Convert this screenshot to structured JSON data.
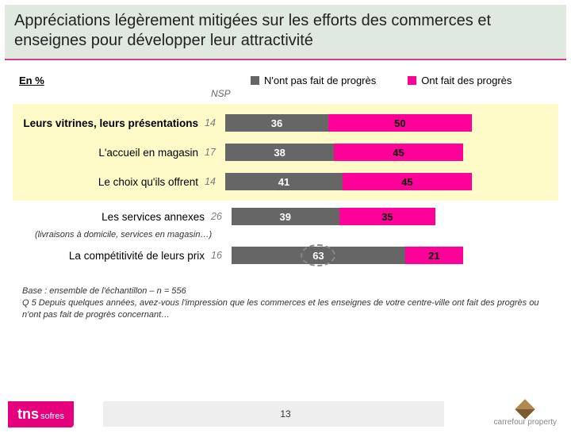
{
  "title": "Appréciations légèrement mitigées sur les efforts des commerces et enseignes pour développer leur attractivité",
  "legend": {
    "unit": "En %",
    "nsp": "NSP",
    "no_progress": "N'ont pas fait de progrès",
    "progress": "Ont fait des progrès"
  },
  "colors": {
    "no_progress": "#666666",
    "progress": "#ff0099",
    "highlight": "#fffbc9",
    "title_band": "#dfe9df",
    "title_underline": "#d43d8c"
  },
  "chart": {
    "type": "stacked-bar-horizontal",
    "bar_scale_max": 100,
    "rows": [
      {
        "label": "Leurs vitrines, leurs présentations",
        "nsp": 14,
        "no": 36,
        "yes": 50,
        "highlight": true,
        "bold": true
      },
      {
        "label": "L'accueil en magasin",
        "nsp": 17,
        "no": 38,
        "yes": 45,
        "highlight": true
      },
      {
        "label": "Le choix qu'ils offrent",
        "nsp": 14,
        "no": 41,
        "yes": 45,
        "highlight": true
      },
      {
        "label": "Les services annexes",
        "nsp": 26,
        "no": 39,
        "yes": 35,
        "highlight": false,
        "subnote": "(livraisons à domicile, services en magasin…)"
      },
      {
        "label": "La compétitivité de leurs prix",
        "nsp": 16,
        "no": 63,
        "yes": 21,
        "highlight": false,
        "circle_no": true
      }
    ]
  },
  "footer": {
    "base": "Base : ensemble de l'échantillon – n = 556",
    "question": "Q 5   Depuis quelques années, avez-vous l'impression que les commerces et les enseignes de votre centre-ville ont fait des progrès ou n'ont pas fait de progrès concernant…"
  },
  "page_number": "13",
  "logo_tns": {
    "main": "tns",
    "sub": "sofres"
  },
  "logo_right": "carrefour property"
}
